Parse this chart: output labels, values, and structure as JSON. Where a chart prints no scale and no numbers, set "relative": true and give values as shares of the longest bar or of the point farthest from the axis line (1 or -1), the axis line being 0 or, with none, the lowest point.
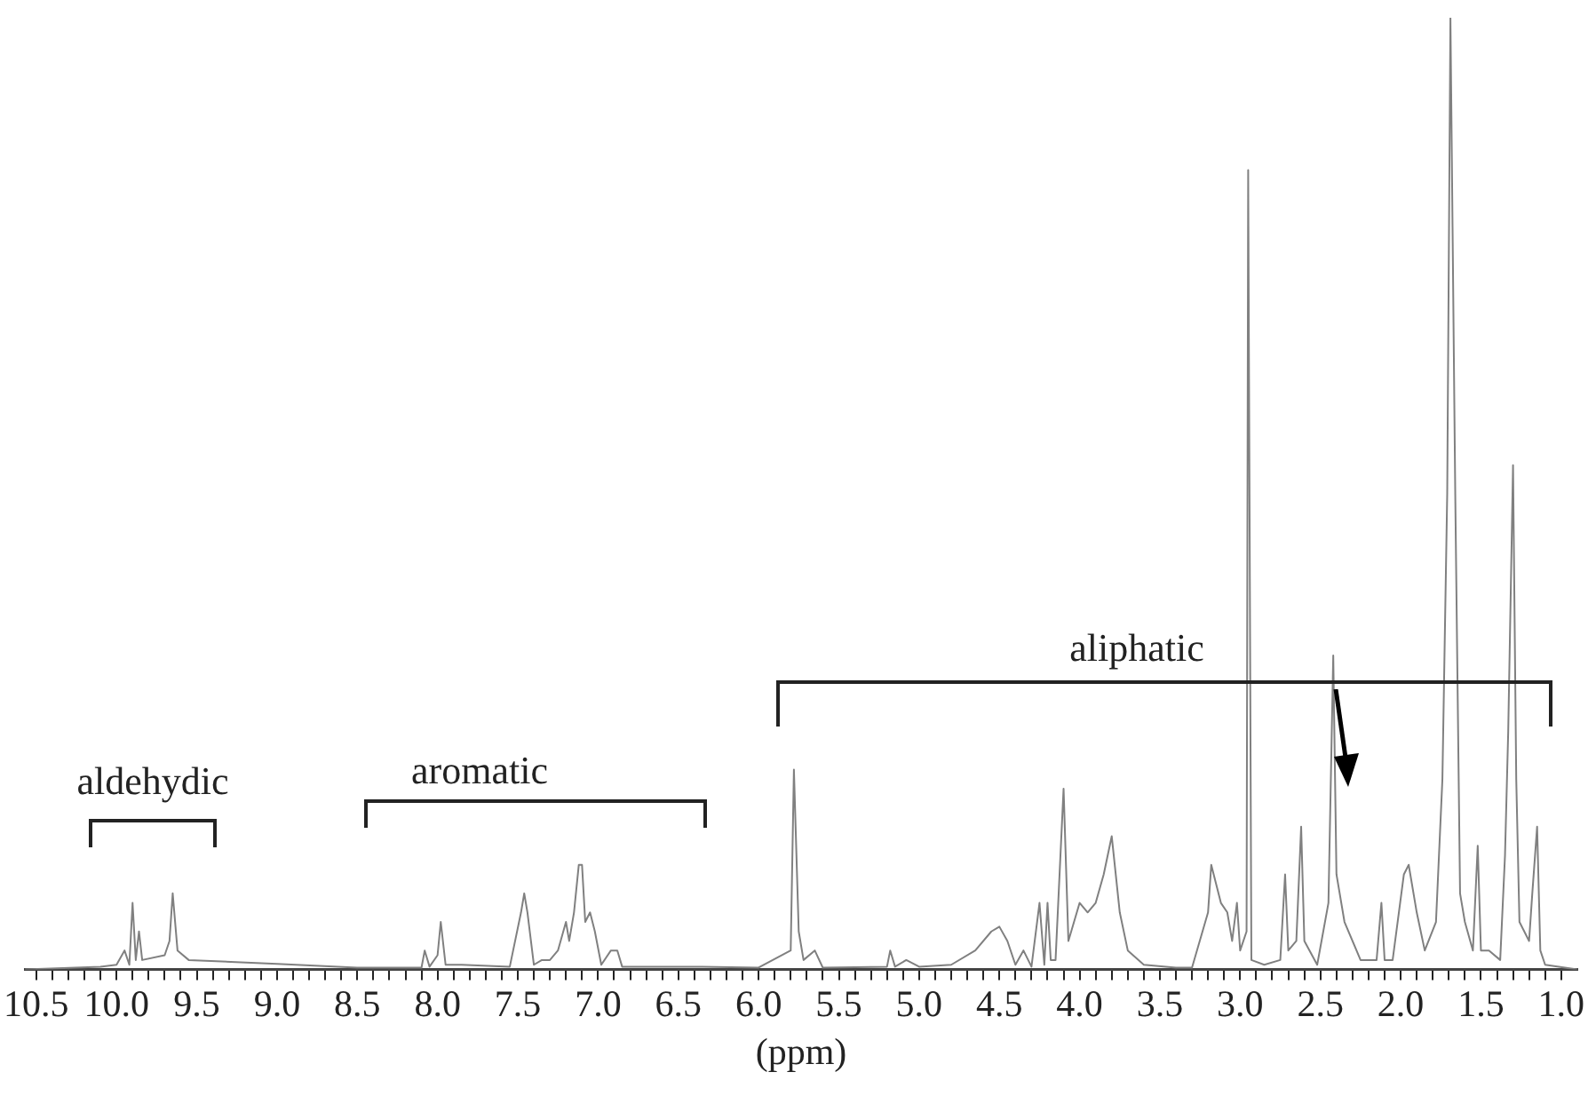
{
  "chart_data": {
    "type": "line",
    "relative": true,
    "xlabel": "(ppm)",
    "xlim": [
      10.57,
      0.9
    ],
    "xticks": [
      10.5,
      {
        "value": 10.4,
        "label": null
      },
      {
        "value": 10.3,
        "label": null
      },
      {
        "value": 10.2,
        "label": null
      },
      {
        "value": 10.1,
        "label": null
      },
      {
        "value": 10.0,
        "label": "10.0"
      },
      {
        "value": 9.9,
        "label": null
      },
      {
        "value": 9.8,
        "label": null
      },
      {
        "value": 9.7,
        "label": null
      },
      {
        "value": 9.6,
        "label": null
      },
      9.5,
      {
        "value": 9.4,
        "label": null
      },
      {
        "value": 9.3,
        "label": null
      },
      {
        "value": 9.2,
        "label": null
      },
      {
        "value": 9.1,
        "label": null
      },
      {
        "value": 9.0,
        "label": "9.0"
      },
      {
        "value": 8.9,
        "label": null
      },
      {
        "value": 8.8,
        "label": null
      },
      {
        "value": 8.7,
        "label": null
      },
      {
        "value": 8.6,
        "label": null
      },
      8.5,
      {
        "value": 8.4,
        "label": null
      },
      {
        "value": 8.3,
        "label": null
      },
      {
        "value": 8.2,
        "label": null
      },
      {
        "value": 8.1,
        "label": null
      },
      {
        "value": 8.0,
        "label": "8.0"
      },
      {
        "value": 7.9,
        "label": null
      },
      {
        "value": 7.8,
        "label": null
      },
      {
        "value": 7.7,
        "label": null
      },
      {
        "value": 7.6,
        "label": null
      },
      7.5,
      {
        "value": 7.4,
        "label": null
      },
      {
        "value": 7.3,
        "label": null
      },
      {
        "value": 7.2,
        "label": null
      },
      {
        "value": 7.1,
        "label": null
      },
      {
        "value": 7.0,
        "label": "7.0"
      },
      {
        "value": 6.9,
        "label": null
      },
      {
        "value": 6.8,
        "label": null
      },
      {
        "value": 6.7,
        "label": null
      },
      {
        "value": 6.6,
        "label": null
      },
      6.5,
      {
        "value": 6.4,
        "label": null
      },
      {
        "value": 6.3,
        "label": null
      },
      {
        "value": 6.2,
        "label": null
      },
      {
        "value": 6.1,
        "label": null
      },
      {
        "value": 6.0,
        "label": "6.0"
      },
      {
        "value": 5.9,
        "label": null
      },
      {
        "value": 5.8,
        "label": null
      },
      {
        "value": 5.7,
        "label": null
      },
      {
        "value": 5.6,
        "label": null
      },
      5.5,
      {
        "value": 5.4,
        "label": null
      },
      {
        "value": 5.3,
        "label": null
      },
      {
        "value": 5.2,
        "label": null
      },
      {
        "value": 5.1,
        "label": null
      },
      {
        "value": 5.0,
        "label": "5.0"
      },
      {
        "value": 4.9,
        "label": null
      },
      {
        "value": 4.8,
        "label": null
      },
      {
        "value": 4.7,
        "label": null
      },
      {
        "value": 4.6,
        "label": null
      },
      4.5,
      {
        "value": 4.4,
        "label": null
      },
      {
        "value": 4.3,
        "label": null
      },
      {
        "value": 4.2,
        "label": null
      },
      {
        "value": 4.1,
        "label": null
      },
      {
        "value": 4.0,
        "label": "4.0"
      },
      {
        "value": 3.9,
        "label": null
      },
      {
        "value": 3.8,
        "label": null
      },
      {
        "value": 3.7,
        "label": null
      },
      {
        "value": 3.6,
        "label": null
      },
      3.5,
      {
        "value": 3.4,
        "label": null
      },
      {
        "value": 3.3,
        "label": null
      },
      {
        "value": 3.2,
        "label": null
      },
      {
        "value": 3.1,
        "label": null
      },
      {
        "value": 3.0,
        "label": "3.0"
      },
      {
        "value": 2.9,
        "label": null
      },
      {
        "value": 2.8,
        "label": null
      },
      {
        "value": 2.7,
        "label": null
      },
      {
        "value": 2.6,
        "label": null
      },
      2.5,
      {
        "value": 2.4,
        "label": null
      },
      {
        "value": 2.3,
        "label": null
      },
      {
        "value": 2.2,
        "label": null
      },
      {
        "value": 2.1,
        "label": null
      },
      {
        "value": 2.0,
        "label": "2.0"
      },
      {
        "value": 1.9,
        "label": null
      },
      {
        "value": 1.8,
        "label": null
      },
      {
        "value": 1.7,
        "label": null
      },
      {
        "value": 1.6,
        "label": null
      },
      1.5,
      {
        "value": 1.4,
        "label": null
      },
      {
        "value": 1.3,
        "label": null
      },
      {
        "value": 1.2,
        "label": null
      },
      {
        "value": 1.1,
        "label": null
      },
      {
        "value": 1.0,
        "label": "1.0"
      }
    ],
    "annotations": [
      "aldehydic",
      "aromatic",
      "aliphatic"
    ],
    "marker": "none",
    "grid": false,
    "legend": false,
    "series": [
      {
        "color": "#808080",
        "x": [
          10.57,
          10.1,
          10.0,
          9.95,
          9.92,
          9.9,
          9.88,
          9.86,
          9.84,
          9.7,
          9.67,
          9.65,
          9.62,
          9.55,
          9.0,
          8.5,
          8.1,
          8.08,
          8.05,
          8.0,
          7.98,
          7.95,
          7.85,
          7.55,
          7.48,
          7.46,
          7.44,
          7.4,
          7.35,
          7.3,
          7.25,
          7.2,
          7.18,
          7.15,
          7.12,
          7.1,
          7.08,
          7.05,
          7.02,
          6.98,
          6.92,
          6.88,
          6.85,
          6.6,
          6.35,
          6.0,
          5.8,
          5.78,
          5.75,
          5.72,
          5.65,
          5.6,
          5.2,
          5.18,
          5.15,
          5.08,
          5.0,
          4.8,
          4.65,
          4.55,
          4.5,
          4.45,
          4.4,
          4.35,
          4.3,
          4.25,
          4.22,
          4.2,
          4.18,
          4.15,
          4.1,
          4.07,
          4.0,
          3.95,
          3.9,
          3.85,
          3.8,
          3.75,
          3.7,
          3.6,
          3.4,
          3.3,
          3.2,
          3.18,
          3.12,
          3.08,
          3.05,
          3.02,
          3.0,
          2.96,
          2.95,
          2.93,
          2.85,
          2.75,
          2.72,
          2.7,
          2.65,
          2.62,
          2.6,
          2.52,
          2.45,
          2.42,
          2.4,
          2.35,
          2.25,
          2.15,
          2.12,
          2.1,
          2.05,
          1.98,
          1.95,
          1.9,
          1.85,
          1.78,
          1.74,
          1.71,
          1.69,
          1.66,
          1.63,
          1.6,
          1.55,
          1.52,
          1.5,
          1.45,
          1.38,
          1.35,
          1.33,
          1.3,
          1.28,
          1.26,
          1.2,
          1.18,
          1.15,
          1.13,
          1.1,
          0.9
        ],
        "values": [
          0,
          0.003,
          0.005,
          0.02,
          0.005,
          0.07,
          0.01,
          0.04,
          0.01,
          0.015,
          0.03,
          0.08,
          0.02,
          0.01,
          0.006,
          0.002,
          0.002,
          0.02,
          0.003,
          0.015,
          0.05,
          0.005,
          0.005,
          0.003,
          0.06,
          0.08,
          0.06,
          0.005,
          0.01,
          0.01,
          0.02,
          0.05,
          0.03,
          0.06,
          0.11,
          0.11,
          0.05,
          0.06,
          0.04,
          0.005,
          0.02,
          0.02,
          0.003,
          0.003,
          0.003,
          0.002,
          0.02,
          0.21,
          0.04,
          0.01,
          0.02,
          0.002,
          0.003,
          0.02,
          0.003,
          0.01,
          0.003,
          0.005,
          0.02,
          0.04,
          0.045,
          0.03,
          0.005,
          0.02,
          0.003,
          0.07,
          0.005,
          0.07,
          0.01,
          0.01,
          0.19,
          0.03,
          0.07,
          0.06,
          0.07,
          0.1,
          0.14,
          0.06,
          0.02,
          0.005,
          0.002,
          0.002,
          0.06,
          0.11,
          0.07,
          0.06,
          0.03,
          0.07,
          0.02,
          0.04,
          0.84,
          0.01,
          0.005,
          0.01,
          0.1,
          0.02,
          0.03,
          0.15,
          0.03,
          0.005,
          0.07,
          0.33,
          0.1,
          0.05,
          0.01,
          0.01,
          0.07,
          0.01,
          0.01,
          0.1,
          0.11,
          0.06,
          0.02,
          0.05,
          0.2,
          0.5,
          1,
          0.5,
          0.08,
          0.05,
          0.02,
          0.13,
          0.02,
          0.02,
          0.01,
          0.12,
          0.25,
          0.53,
          0.2,
          0.05,
          0.03,
          0.08,
          0.15,
          0.02,
          0.005,
          0
        ]
      }
    ]
  }
}
